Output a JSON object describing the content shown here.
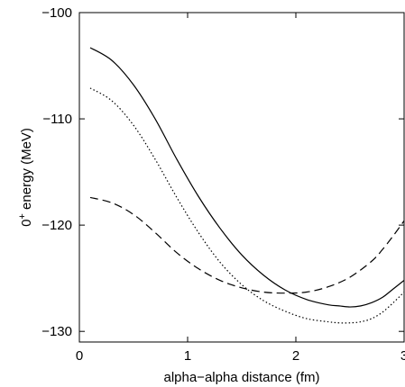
{
  "chart_data": {
    "type": "line",
    "title": "",
    "xlabel": "alpha−alpha distance (fm)",
    "ylabel_base": "0",
    "ylabel_sup": "+",
    "ylabel_rest": " energy (MeV)",
    "xlim": [
      0,
      3
    ],
    "ylim": [
      -131,
      -100
    ],
    "xticks": [
      0,
      1,
      2,
      3
    ],
    "xtick_labels": [
      "0",
      "1",
      "2",
      "3"
    ],
    "yticks": [
      -100,
      -110,
      -120,
      -130
    ],
    "ytick_labels": [
      "−100",
      "−110",
      "−120",
      "−130"
    ],
    "grid": false,
    "legend": "none",
    "series": [
      {
        "style": "solid",
        "color": "#000000",
        "x": [
          0.1,
          0.3,
          0.5,
          0.7,
          0.9,
          1.1,
          1.3,
          1.5,
          1.7,
          1.9,
          2.1,
          2.3,
          2.4,
          2.5,
          2.6,
          2.7,
          2.8,
          2.9,
          3.0
        ],
        "y": [
          -103.3,
          -104.5,
          -106.8,
          -110.0,
          -113.8,
          -117.3,
          -120.3,
          -122.8,
          -124.7,
          -126.1,
          -127.0,
          -127.5,
          -127.6,
          -127.7,
          -127.6,
          -127.3,
          -126.8,
          -126.0,
          -125.2
        ]
      },
      {
        "style": "dotted",
        "color": "#000000",
        "x": [
          0.1,
          0.3,
          0.5,
          0.7,
          0.9,
          1.1,
          1.3,
          1.5,
          1.7,
          1.9,
          2.1,
          2.3,
          2.4,
          2.5,
          2.6,
          2.7,
          2.8,
          2.9,
          3.0
        ],
        "y": [
          -107.1,
          -108.3,
          -110.6,
          -113.8,
          -117.4,
          -120.7,
          -123.5,
          -125.6,
          -127.1,
          -128.1,
          -128.8,
          -129.1,
          -129.2,
          -129.2,
          -129.1,
          -128.8,
          -128.2,
          -127.3,
          -126.3
        ]
      },
      {
        "style": "dashed",
        "color": "#000000",
        "x": [
          0.1,
          0.3,
          0.5,
          0.7,
          0.9,
          1.1,
          1.3,
          1.5,
          1.7,
          1.9,
          2.1,
          2.3,
          2.5,
          2.7,
          2.8,
          2.9,
          3.0
        ],
        "y": [
          -117.4,
          -117.9,
          -119.0,
          -120.7,
          -122.6,
          -124.1,
          -125.2,
          -125.9,
          -126.3,
          -126.4,
          -126.3,
          -125.8,
          -124.9,
          -123.4,
          -122.3,
          -121.0,
          -119.6
        ]
      }
    ]
  }
}
